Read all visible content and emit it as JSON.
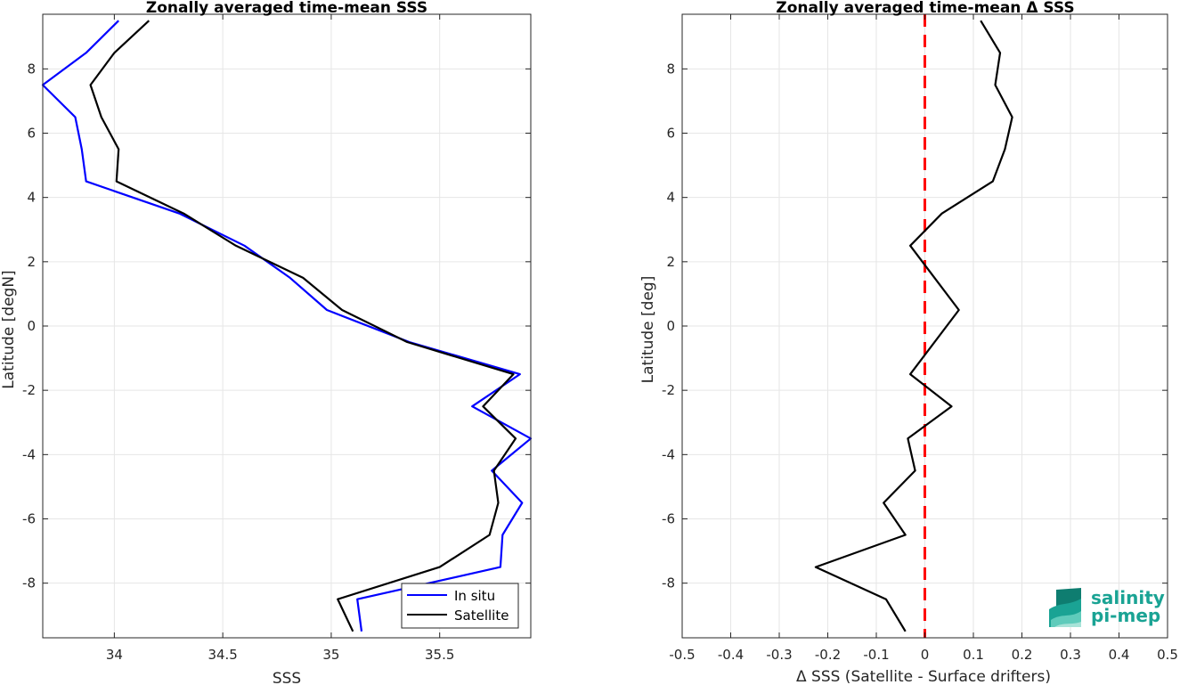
{
  "chart_data": [
    {
      "type": "line",
      "title": "Zonally averaged time-mean SSS",
      "xlabel": "SSS",
      "ylabel": "Latitude [degN]",
      "xlim": [
        33.67,
        35.92
      ],
      "ylim": [
        -9.7,
        9.7
      ],
      "xticks": [
        34,
        34.5,
        35,
        35.5
      ],
      "xtick_labels": [
        "34",
        "34.5",
        "35",
        "35.5"
      ],
      "yticks": [
        -8,
        -6,
        -4,
        -2,
        0,
        2,
        4,
        6,
        8
      ],
      "ytick_labels": [
        "-8",
        "-6",
        "-4",
        "-2",
        "0",
        "2",
        "4",
        "6",
        "8"
      ],
      "grid": true,
      "legend": "bottom-right",
      "series": [
        {
          "name": "In situ",
          "color": "#0000ff",
          "points": [
            [
              35.14,
              -9.5
            ],
            [
              35.12,
              -8.5
            ],
            [
              35.78,
              -7.5
            ],
            [
              35.79,
              -6.5
            ],
            [
              35.88,
              -5.5
            ],
            [
              35.74,
              -4.5
            ],
            [
              35.92,
              -3.5
            ],
            [
              35.65,
              -2.5
            ],
            [
              35.87,
              -1.5
            ],
            [
              35.36,
              -0.5
            ],
            [
              34.98,
              0.5
            ],
            [
              34.81,
              1.5
            ],
            [
              34.6,
              2.5
            ],
            [
              34.3,
              3.5
            ],
            [
              33.87,
              4.5
            ],
            [
              33.85,
              5.5
            ],
            [
              33.82,
              6.5
            ],
            [
              33.67,
              7.5
            ],
            [
              33.87,
              8.5
            ],
            [
              34.02,
              9.5
            ]
          ]
        },
        {
          "name": "Satellite",
          "color": "#000000",
          "points": [
            [
              35.1,
              -9.5
            ],
            [
              35.03,
              -8.5
            ],
            [
              35.5,
              -7.5
            ],
            [
              35.73,
              -6.5
            ],
            [
              35.77,
              -5.5
            ],
            [
              35.75,
              -4.5
            ],
            [
              35.85,
              -3.5
            ],
            [
              35.7,
              -2.5
            ],
            [
              35.84,
              -1.5
            ],
            [
              35.35,
              -0.5
            ],
            [
              35.05,
              0.5
            ],
            [
              34.87,
              1.5
            ],
            [
              34.56,
              2.5
            ],
            [
              34.32,
              3.5
            ],
            [
              34.01,
              4.5
            ],
            [
              34.02,
              5.5
            ],
            [
              33.94,
              6.5
            ],
            [
              33.89,
              7.5
            ],
            [
              34.0,
              8.5
            ],
            [
              34.16,
              9.5
            ]
          ]
        }
      ]
    },
    {
      "type": "line",
      "title": "Zonally averaged time-mean Δ SSS",
      "xlabel": "Δ SSS (Satellite - Surface drifters)",
      "ylabel": "Latitude [deg]",
      "xlim": [
        -0.5,
        0.5
      ],
      "ylim": [
        -9.7,
        9.7
      ],
      "xticks": [
        -0.5,
        -0.4,
        -0.3,
        -0.2,
        -0.1,
        0,
        0.1,
        0.2,
        0.3,
        0.4,
        0.5
      ],
      "xtick_labels": [
        "-0.5",
        "-0.4",
        "-0.3",
        "-0.2",
        "-0.1",
        "0",
        "0.1",
        "0.2",
        "0.3",
        "0.4",
        "0.5"
      ],
      "yticks": [
        -8,
        -6,
        -4,
        -2,
        0,
        2,
        4,
        6,
        8
      ],
      "ytick_labels": [
        "-8",
        "-6",
        "-4",
        "-2",
        "0",
        "2",
        "4",
        "6",
        "8"
      ],
      "grid": true,
      "reference_line": {
        "x": 0,
        "color": "#ff0000",
        "style": "dashed"
      },
      "series": [
        {
          "color": "#000000",
          "points": [
            [
              -0.04,
              -9.5
            ],
            [
              -0.08,
              -8.5
            ],
            [
              -0.225,
              -7.5
            ],
            [
              -0.04,
              -6.5
            ],
            [
              -0.085,
              -5.5
            ],
            [
              -0.02,
              -4.5
            ],
            [
              -0.035,
              -3.5
            ],
            [
              0.055,
              -2.5
            ],
            [
              -0.03,
              -1.5
            ],
            [
              0.07,
              0.5
            ],
            [
              0.02,
              1.5
            ],
            [
              -0.03,
              2.5
            ],
            [
              0.035,
              3.5
            ],
            [
              0.14,
              4.5
            ],
            [
              0.165,
              5.5
            ],
            [
              0.18,
              6.5
            ],
            [
              0.145,
              7.5
            ],
            [
              0.155,
              8.5
            ],
            [
              0.115,
              9.5
            ]
          ]
        }
      ]
    }
  ],
  "logo": {
    "line1": "salinity",
    "line2": "pi-mep",
    "color": "#1aa394"
  }
}
